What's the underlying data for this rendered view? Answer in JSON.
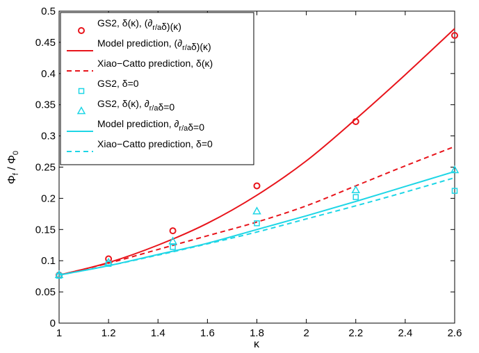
{
  "chart_data": {
    "type": "line",
    "xlabel": "κ",
    "ylabel": "Φ_f / Φ_0",
    "ylabel_parts": {
      "phi1": "Φ",
      "sub1": "f",
      "slash": " / ",
      "phi2": "Φ",
      "sub2": "0"
    },
    "xlim": [
      1,
      2.6
    ],
    "ylim": [
      0,
      0.5
    ],
    "xticks": [
      1,
      1.2,
      1.4,
      1.6,
      1.8,
      2,
      2.2,
      2.4,
      2.6
    ],
    "xtick_labels": [
      "1",
      "1.2",
      "1.4",
      "1.6",
      "1.8",
      "2",
      "2.2",
      "2.4",
      "2.6"
    ],
    "yticks": [
      0,
      0.05,
      0.1,
      0.15,
      0.2,
      0.25,
      0.3,
      0.35,
      0.4,
      0.45,
      0.5
    ],
    "ytick_labels": [
      "0",
      "0.05",
      "0.1",
      "0.15",
      "0.2",
      "0.25",
      "0.3",
      "0.35",
      "0.4",
      "0.45",
      "0.5"
    ],
    "grid": false,
    "legend_position": "top-left",
    "series": [
      {
        "name": "GS2, δ(κ), (∂r/aδ)(κ)",
        "legend_parts": [
          {
            "t": "GS2, δ(κ), (∂"
          },
          {
            "t": "r/a",
            "sub": true
          },
          {
            "t": "δ)(κ)"
          }
        ],
        "style": "marker",
        "marker": "circle",
        "color": "#e8141b",
        "x": [
          1,
          1.2,
          1.46,
          1.8,
          2.2,
          2.6
        ],
        "y": [
          0.077,
          0.103,
          0.148,
          0.22,
          0.323,
          0.461
        ]
      },
      {
        "name": "Model prediction, (∂r/aδ)(κ)",
        "legend_parts": [
          {
            "t": "Model prediction, (∂"
          },
          {
            "t": "r/a",
            "sub": true
          },
          {
            "t": "δ)(κ)"
          }
        ],
        "style": "solid",
        "color": "#e8141b",
        "x": [
          1,
          1.2,
          1.4,
          1.6,
          1.8,
          2,
          2.2,
          2.4,
          2.6
        ],
        "y": [
          0.077,
          0.097,
          0.125,
          0.16,
          0.205,
          0.26,
          0.327,
          0.398,
          0.472
        ]
      },
      {
        "name": "Xiao−Catto prediction, δ(κ)",
        "legend_parts": [
          {
            "t": "Xiao−Catto prediction, δ(κ)"
          }
        ],
        "style": "dashed",
        "color": "#e8141b",
        "x": [
          1,
          1.2,
          1.4,
          1.6,
          1.8,
          2,
          2.2,
          2.4,
          2.6
        ],
        "y": [
          0.077,
          0.096,
          0.118,
          0.14,
          0.162,
          0.188,
          0.22,
          0.252,
          0.283
        ]
      },
      {
        "name": "GS2, δ=0",
        "legend_parts": [
          {
            "t": "GS2, δ=0"
          }
        ],
        "style": "marker",
        "marker": "square",
        "color": "#1ed6e6",
        "x": [
          1,
          1.2,
          1.46,
          1.8,
          2.2,
          2.6
        ],
        "y": [
          0.076,
          0.095,
          0.122,
          0.16,
          0.202,
          0.212
        ]
      },
      {
        "name": "GS2, δ(κ), ∂r/aδ=0",
        "legend_parts": [
          {
            "t": "GS2, δ(κ), ∂"
          },
          {
            "t": "r/a",
            "sub": true
          },
          {
            "t": "δ=0"
          }
        ],
        "style": "marker",
        "marker": "triangle",
        "color": "#1ed6e6",
        "x": [
          1,
          1.2,
          1.46,
          1.8,
          2.2,
          2.6
        ],
        "y": [
          0.077,
          0.097,
          0.131,
          0.179,
          0.213,
          0.245
        ]
      },
      {
        "name": "Model prediction, ∂r/aδ=0",
        "legend_parts": [
          {
            "t": "Model prediction, ∂"
          },
          {
            "t": "r/a",
            "sub": true
          },
          {
            "t": "δ=0"
          }
        ],
        "style": "solid",
        "color": "#1ed6e6",
        "x": [
          1,
          1.2,
          1.4,
          1.6,
          1.8,
          2,
          2.2,
          2.4,
          2.6
        ],
        "y": [
          0.077,
          0.092,
          0.11,
          0.128,
          0.15,
          0.172,
          0.195,
          0.219,
          0.243
        ]
      },
      {
        "name": "Xiao−Catto prediction, δ=0",
        "legend_parts": [
          {
            "t": "Xiao−Catto prediction, δ=0"
          }
        ],
        "style": "dashed",
        "color": "#1ed6e6",
        "x": [
          1,
          1.2,
          1.4,
          1.6,
          1.8,
          2,
          2.2,
          2.4,
          2.6
        ],
        "y": [
          0.077,
          0.092,
          0.109,
          0.127,
          0.146,
          0.167,
          0.188,
          0.21,
          0.233
        ]
      }
    ]
  }
}
